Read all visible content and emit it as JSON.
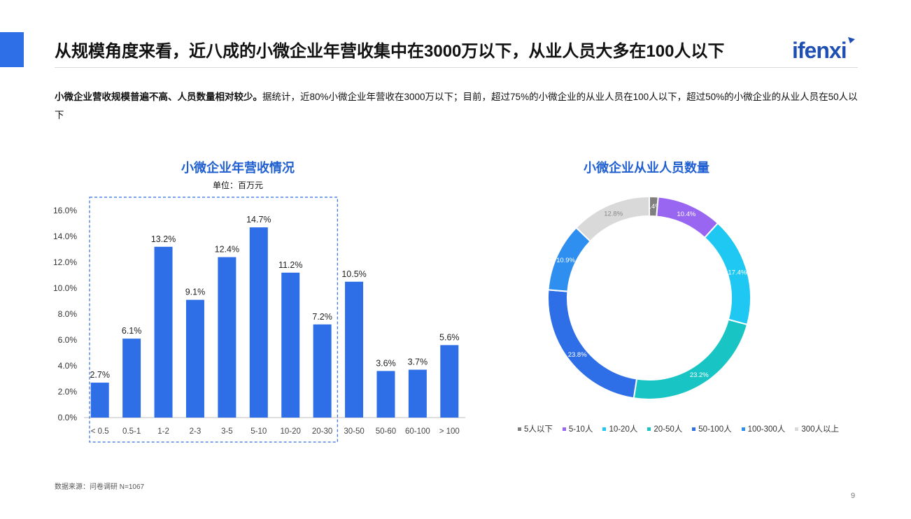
{
  "headline": "从规模角度来看，近八成的小微企业年营收集中在3000万以下，从业人员大多在100人以下",
  "logo_text": "ifenxi",
  "summary": {
    "bold": "小微企业营收规模普遍不高、人员数量相对较少。",
    "rest": "据统计，近80%小微企业年营收在3000万以下；目前，超过75%的小微企业的从业人员在100人以下，超过50%的小微企业的从业人员在50人以下"
  },
  "source": "数据来源：问卷调研 N=1067",
  "page_number": "9",
  "chart_data": [
    {
      "type": "bar",
      "title": "小微企业年营收情况",
      "unit_label": "单位：百万元",
      "categories": [
        "< 0.5",
        "0.5-1",
        "1-2",
        "2-3",
        "3-5",
        "5-10",
        "10-20",
        "20-30",
        "30-50",
        "50-60",
        "60-100",
        "> 100"
      ],
      "values": [
        2.7,
        6.1,
        13.2,
        9.1,
        12.4,
        14.7,
        11.2,
        7.2,
        10.5,
        3.6,
        3.7,
        5.6
      ],
      "value_labels": [
        "2.7%",
        "6.1%",
        "13.2%",
        "9.1%",
        "12.4%",
        "14.7%",
        "11.2%",
        "7.2%",
        "10.5%",
        "3.6%",
        "3.7%",
        "5.6%"
      ],
      "ylim": [
        0,
        16
      ],
      "yticks": [
        "0.0%",
        "2.0%",
        "4.0%",
        "6.0%",
        "8.0%",
        "10.0%",
        "12.0%",
        "14.0%",
        "16.0%"
      ],
      "bar_color": "#2E6FE8",
      "highlight_categories": [
        "< 0.5",
        "20-30"
      ],
      "grid": false
    },
    {
      "type": "pie",
      "style": "donut",
      "title": "小微企业从业人员数量",
      "labels": [
        "5人以下",
        "5-10人",
        "10-20人",
        "20-50人",
        "50-100人",
        "100-300人",
        "300人以上"
      ],
      "values": [
        1.4,
        10.4,
        17.4,
        23.2,
        23.8,
        10.9,
        12.8
      ],
      "value_labels": [
        "1.4%",
        "10.4%",
        "17.4%",
        "23.2%",
        "23.8%",
        "10.9%",
        "12.8%"
      ],
      "colors": [
        "#7F7F7F",
        "#9966F2",
        "#1FC8F2",
        "#19C5C4",
        "#2E6FE8",
        "#2E8FF0",
        "#D9D9D9"
      ],
      "legend": "bottom"
    }
  ]
}
